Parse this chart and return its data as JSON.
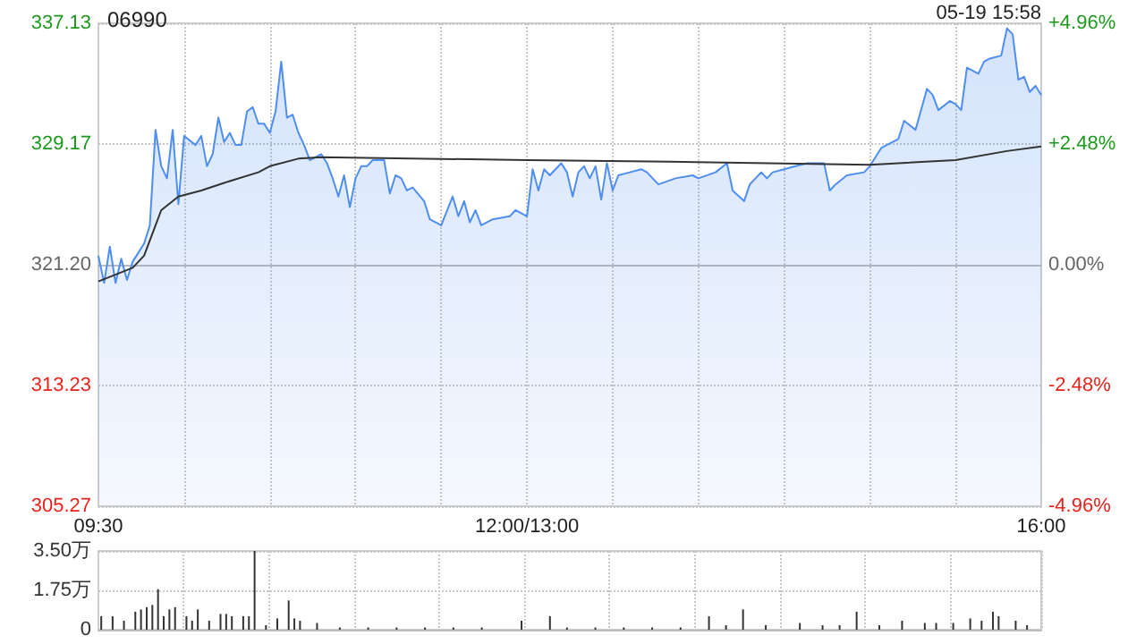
{
  "chart_data": [
    {
      "type": "line",
      "title": "06990",
      "annotations": [
        "05-19 15:58"
      ],
      "categories": [
        "09:30",
        null,
        null,
        null,
        null,
        null,
        null,
        null,
        null,
        null,
        null,
        null,
        null,
        null,
        null,
        null,
        null,
        null,
        null,
        null,
        null,
        null,
        null,
        null,
        null,
        null,
        null,
        null,
        null,
        null,
        null,
        null,
        null,
        null,
        null,
        null,
        null,
        null,
        null,
        null,
        null,
        null,
        null,
        null,
        null,
        null,
        null,
        null,
        null,
        null,
        null,
        null,
        null,
        null,
        null,
        null,
        null,
        null,
        null,
        null,
        null,
        null,
        null,
        null,
        null,
        null,
        null,
        null,
        null,
        null,
        null,
        null,
        null,
        null,
        null,
        "12:00/13:00",
        null,
        null,
        null,
        null,
        null,
        null,
        null,
        null,
        null,
        null,
        null,
        null,
        null,
        null,
        null,
        null,
        null,
        null,
        null,
        null,
        null,
        null,
        null,
        null,
        null,
        null,
        null,
        null,
        null,
        null,
        null,
        null,
        null,
        null,
        null,
        null,
        null,
        null,
        null,
        null,
        null,
        null,
        null,
        null,
        null,
        null,
        null,
        null,
        null,
        null,
        null,
        null,
        null,
        null,
        null,
        null,
        null,
        null,
        null,
        null,
        null,
        null,
        null,
        null,
        null,
        null,
        null,
        null,
        null,
        null,
        null,
        null,
        null,
        null,
        null,
        null,
        null,
        null,
        null,
        null,
        null,
        null,
        null,
        null,
        null,
        null,
        null,
        null,
        null,
        "16:00"
      ],
      "ylim": [
        305.27,
        337.13
      ],
      "yticks": [
        305.27,
        313.23,
        {
          "value": 321.2,
          "label": "321.20"
        },
        329.17,
        337.13
      ],
      "y2lim": [
        -4.96,
        4.96
      ],
      "y2ticks": [
        {
          "value": -4.96,
          "label": "-4.96%"
        },
        {
          "value": -2.48,
          "label": "-2.48%"
        },
        {
          "value": 0,
          "label": "0.00%"
        },
        {
          "value": 2.48,
          "label": "+2.48%"
        },
        {
          "value": 4.96,
          "label": "+4.96%"
        }
      ],
      "grid": true,
      "marker": "none",
      "series": [
        {
          "type": "area",
          "color": "#4e8ef0",
          "values": [
            321.8,
            320.0,
            322.4,
            320.0,
            321.6,
            320.2,
            321.4,
            null,
            322.6,
            323.8,
            330.1,
            327.7,
            326.9,
            330.1,
            325.2,
            329.7,
            null,
            329.1,
            329.7,
            327.7,
            328.5,
            330.9,
            329.3,
            329.9,
            329.1,
            329.1,
            331.3,
            331.6,
            330.5,
            330.5,
            329.9,
            331.3,
            334.6,
            330.9,
            331.1,
            329.9,
            329.1,
            328.1,
            null,
            328.5,
            327.9,
            326.9,
            325.7,
            327.1,
            325.0,
            326.9,
            327.7,
            327.7,
            328.1,
            null,
            328.1,
            325.9,
            327.1,
            326.9,
            326.1,
            326.3,
            null,
            325.4,
            324.2,
            null,
            323.8,
            null,
            325.7,
            324.4,
            325.4,
            324.0,
            324.8,
            323.8,
            null,
            324.2,
            null,
            null,
            324.4,
            324.8,
            324.6,
            324.4,
            327.5,
            326.1,
            327.5,
            327.1,
            null,
            327.9,
            327.3,
            325.7,
            327.3,
            327.7,
            326.9,
            327.7,
            325.5,
            327.9,
            326.1,
            327.1,
            null,
            327.3,
            null,
            327.5,
            327.3,
            null,
            326.5,
            null,
            null,
            326.9,
            null,
            null,
            327.1,
            326.9,
            null,
            null,
            327.3,
            null,
            327.9,
            326.1,
            null,
            325.4,
            326.5,
            null,
            327.3,
            326.9,
            327.3,
            null,
            327.5,
            null,
            327.7,
            null,
            327.9,
            null,
            null,
            327.9,
            326.1,
            326.5,
            null,
            327.1,
            null,
            null,
            327.3,
            327.7,
            null,
            328.9,
            null,
            null,
            329.5,
            330.7,
            null,
            330.1,
            null,
            332.8,
            332.4,
            331.4,
            null,
            332.0,
            331.8,
            331.4,
            334.2,
            null,
            333.8,
            334.6,
            334.8,
            null,
            335.0,
            336.8,
            336.4,
            333.4,
            333.6,
            332.6,
            333.0,
            332.4
          ]
        },
        {
          "color": "#333333",
          "values": [
            320.1,
            null,
            null,
            null,
            null,
            null,
            321.0,
            null,
            321.8,
            null,
            null,
            324.8,
            null,
            null,
            325.7,
            null,
            null,
            null,
            326.1,
            null,
            null,
            null,
            326.6,
            null,
            null,
            null,
            null,
            null,
            327.3,
            null,
            327.7,
            null,
            null,
            null,
            null,
            328.2,
            null,
            null,
            null,
            328.3,
            null,
            null,
            null,
            null,
            null,
            null,
            null,
            null,
            null,
            null,
            null,
            null,
            null,
            null,
            null,
            null,
            null,
            null,
            null,
            null,
            null,
            null,
            null,
            null,
            null,
            null,
            null,
            null,
            null,
            null,
            null,
            null,
            null,
            null,
            null,
            328.1,
            null,
            null,
            null,
            null,
            null,
            null,
            null,
            null,
            null,
            null,
            null,
            null,
            null,
            null,
            null,
            null,
            null,
            null,
            null,
            null,
            null,
            null,
            null,
            null,
            328.0,
            null,
            null,
            null,
            null,
            null,
            null,
            null,
            null,
            null,
            null,
            null,
            null,
            null,
            null,
            null,
            null,
            null,
            null,
            null,
            null,
            null,
            null,
            null,
            null,
            null,
            null,
            null,
            null,
            null,
            null,
            null,
            null,
            null,
            null,
            327.8,
            null,
            null,
            null,
            null,
            null,
            null,
            null,
            null,
            null,
            null,
            null,
            null,
            null,
            null,
            328.1,
            null,
            null,
            null,
            null,
            null,
            null,
            null,
            null,
            328.7,
            null,
            null,
            null,
            null,
            null,
            329.0
          ]
        }
      ]
    },
    {
      "type": "bar",
      "color": "#333333",
      "grid": true,
      "tick_labels": "y",
      "categories": [
        null,
        null,
        null,
        null,
        null,
        null,
        null,
        null,
        null,
        null,
        null,
        null,
        null,
        null,
        null,
        null,
        null,
        null,
        null,
        null,
        null,
        null,
        null,
        null,
        null,
        null,
        null,
        null,
        null,
        null,
        null,
        null,
        null,
        null,
        null,
        null,
        null,
        null,
        null,
        null,
        null,
        null,
        null,
        null,
        null,
        null,
        null,
        null,
        null,
        null,
        null,
        null,
        null,
        null,
        null,
        null,
        null,
        null,
        null,
        null,
        null,
        null,
        null,
        null,
        null,
        null,
        null,
        null,
        null,
        null,
        null,
        null,
        null,
        null,
        null,
        null,
        null,
        null,
        null,
        null,
        null,
        null,
        null,
        null,
        null,
        null,
        null,
        null,
        null,
        null,
        null,
        null,
        null,
        null,
        null,
        null,
        null,
        null,
        null,
        null,
        null,
        null,
        null,
        null,
        null,
        null,
        null,
        null,
        null,
        null,
        null,
        null,
        null,
        null,
        null,
        null,
        null,
        null,
        null,
        null,
        null,
        null,
        null,
        null,
        null,
        null,
        null,
        null,
        null,
        null,
        null,
        null,
        null,
        null,
        null,
        null,
        null,
        null,
        null,
        null,
        null,
        null,
        null,
        null,
        null,
        null,
        null,
        null,
        null,
        null,
        null,
        null,
        null,
        null,
        null,
        null,
        null,
        null,
        null,
        null,
        null,
        null,
        null,
        null,
        null,
        null
      ],
      "ylim": [
        0,
        3.5
      ],
      "yticks": [
        {
          "value": 0,
          "label": "0"
        },
        {
          "value": 1.75,
          "label": "1.75万"
        },
        {
          "value": 3.5,
          "label": "3.50万"
        }
      ],
      "values": [
        0.6,
        null,
        0.6,
        null,
        0.4,
        null,
        0.8,
        0.9,
        1.0,
        1.1,
        1.8,
        0.6,
        0.9,
        1.0,
        null,
        0.6,
        0.4,
        0.9,
        null,
        0.4,
        null,
        0.7,
        0.7,
        0.6,
        null,
        0.6,
        0.6,
        3.5,
        null,
        0.2,
        null,
        0.5,
        null,
        1.3,
        0.5,
        0.4,
        null,
        null,
        0.3,
        null,
        null,
        null,
        0.1,
        null,
        null,
        null,
        null,
        0.1,
        null,
        null,
        null,
        null,
        0.1,
        null,
        null,
        null,
        null,
        0.1,
        null,
        null,
        null,
        null,
        0.1,
        null,
        null,
        null,
        null,
        0.1,
        null,
        null,
        null,
        null,
        null,
        null,
        0.4,
        null,
        null,
        null,
        null,
        0.6,
        null,
        null,
        0.1,
        null,
        null,
        null,
        null,
        0.1,
        null,
        null,
        null,
        null,
        0.1,
        null,
        null,
        null,
        null,
        0.1,
        null,
        null,
        null,
        null,
        0.1,
        null,
        null,
        null,
        null,
        0.6,
        null,
        null,
        0.2,
        null,
        null,
        0.9,
        null,
        null,
        null,
        0.2,
        null,
        null,
        null,
        null,
        null,
        0.3,
        null,
        null,
        null,
        0.2,
        null,
        null,
        0.2,
        null,
        null,
        0.8,
        null,
        null,
        null,
        0.2,
        null,
        null,
        null,
        0.4,
        null,
        null,
        null,
        0.3,
        null,
        0.3,
        null,
        null,
        0.3,
        null,
        null,
        0.5,
        null,
        0.4,
        null,
        0.8,
        0.6,
        null,
        null,
        0.4,
        null,
        0.2,
        null,
        null
      ]
    }
  ]
}
